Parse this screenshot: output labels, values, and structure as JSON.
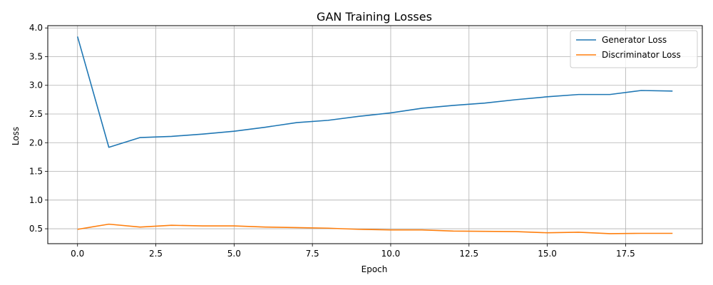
{
  "chart_data": {
    "type": "line",
    "title": "GAN Training Losses",
    "xlabel": "Epoch",
    "ylabel": "Loss",
    "xlim": [
      -0.95,
      19.95
    ],
    "ylim": [
      0.24,
      4.04
    ],
    "xticks": [
      0.0,
      2.5,
      5.0,
      7.5,
      10.0,
      12.5,
      15.0,
      17.5
    ],
    "xtick_labels": [
      "0.0",
      "2.5",
      "5.0",
      "7.5",
      "10.0",
      "12.5",
      "15.0",
      "17.5"
    ],
    "yticks": [
      0.5,
      1.0,
      1.5,
      2.0,
      2.5,
      3.0,
      3.5,
      4.0
    ],
    "ytick_labels": [
      "0.5",
      "1.0",
      "1.5",
      "2.0",
      "2.5",
      "3.0",
      "3.5",
      "4.0"
    ],
    "grid": true,
    "legend_position": "top-right",
    "x": [
      0,
      1,
      2,
      3,
      4,
      5,
      6,
      7,
      8,
      9,
      10,
      11,
      12,
      13,
      14,
      15,
      16,
      17,
      18,
      19
    ],
    "series": [
      {
        "name": "Generator Loss",
        "color": "#1f77b4",
        "values": [
          3.85,
          1.92,
          2.09,
          2.11,
          2.15,
          2.2,
          2.27,
          2.35,
          2.39,
          2.46,
          2.52,
          2.6,
          2.65,
          2.69,
          2.75,
          2.8,
          2.84,
          2.84,
          2.91,
          2.9
        ]
      },
      {
        "name": "Discriminator Loss",
        "color": "#ff7f0e",
        "values": [
          0.49,
          0.58,
          0.53,
          0.56,
          0.55,
          0.55,
          0.53,
          0.52,
          0.51,
          0.49,
          0.48,
          0.48,
          0.46,
          0.455,
          0.45,
          0.43,
          0.44,
          0.415,
          0.42,
          0.42
        ]
      }
    ]
  }
}
